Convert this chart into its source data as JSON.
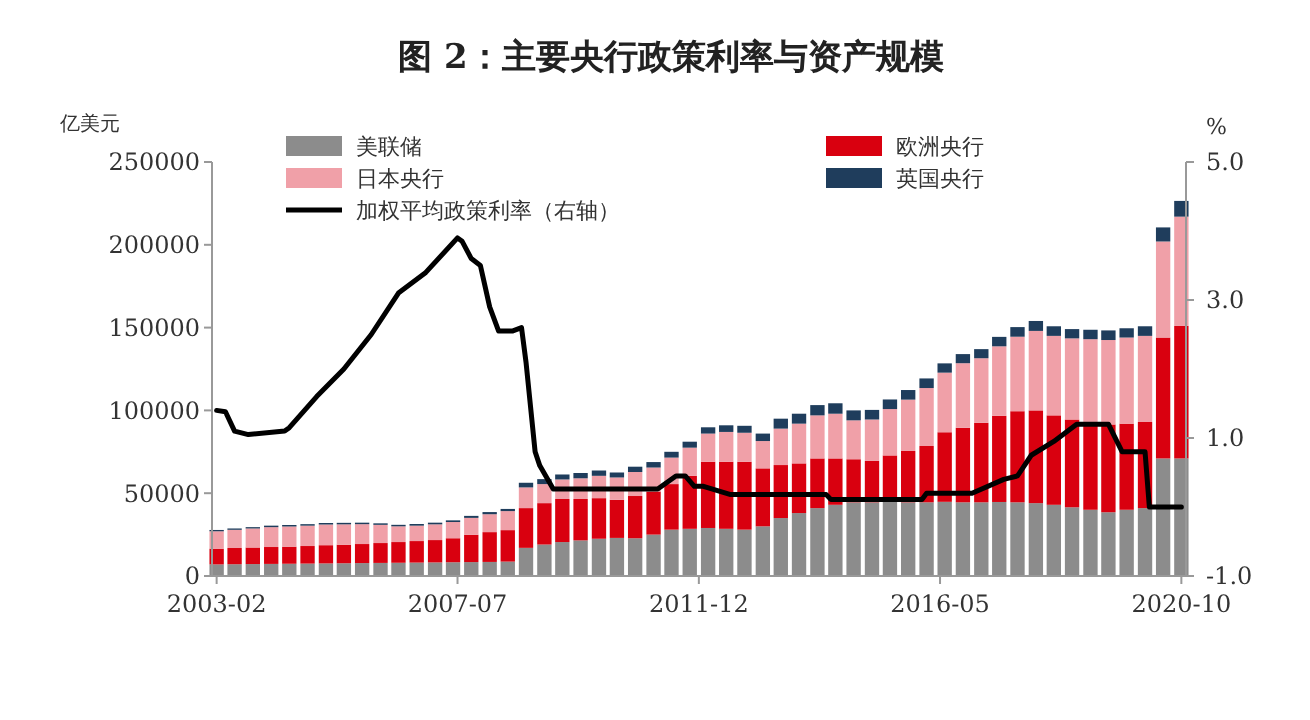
{
  "chart_data": {
    "type": "bar",
    "stacked": true,
    "title": "图 2：主要央行政策利率与资产规模",
    "ylabel": "亿美元",
    "y2label": "%",
    "legend": "top",
    "x": [
      "2003-02",
      "2003-06",
      "2003-10",
      "2004-02",
      "2004-06",
      "2004-10",
      "2005-02",
      "2005-06",
      "2005-10",
      "2006-02",
      "2006-06",
      "2006-10",
      "2007-02",
      "2007-06",
      "2007-10",
      "2008-02",
      "2008-06",
      "2008-10",
      "2009-02",
      "2009-06",
      "2009-10",
      "2010-02",
      "2010-06",
      "2010-10",
      "2011-02",
      "2011-06",
      "2011-10",
      "2012-02",
      "2012-06",
      "2012-10",
      "2013-02",
      "2013-06",
      "2013-10",
      "2014-02",
      "2014-06",
      "2014-10",
      "2015-02",
      "2015-06",
      "2015-10",
      "2016-02",
      "2016-06",
      "2016-10",
      "2017-02",
      "2017-06",
      "2017-10",
      "2018-02",
      "2018-06",
      "2018-10",
      "2019-02",
      "2019-06",
      "2019-10",
      "2020-02",
      "2020-06",
      "2020-10"
    ],
    "xlim": [
      "2003-01",
      "2020-11"
    ],
    "xticks": [
      "2003-02",
      "2007-07",
      "2011-12",
      "2016-05",
      "2020-10"
    ],
    "ylim": [
      0,
      250000
    ],
    "yticks": [
      0,
      50000,
      100000,
      150000,
      200000,
      250000
    ],
    "y2lim": [
      -1,
      5
    ],
    "y2ticks": [
      {
        "value": -1,
        "label": "-1.0"
      },
      {
        "value": 1,
        "label": "1.0"
      },
      {
        "value": 3,
        "label": "3.0"
      },
      {
        "value": 5,
        "label": "5.0"
      }
    ],
    "series": [
      {
        "name": "美联储",
        "color": "#8c8c8c",
        "values": [
          7000,
          7100,
          7200,
          7300,
          7400,
          7500,
          7600,
          7700,
          7800,
          7900,
          8000,
          8100,
          8200,
          8300,
          8400,
          8500,
          8700,
          17000,
          19000,
          20500,
          21500,
          22500,
          23000,
          22800,
          25000,
          28000,
          28500,
          29000,
          28500,
          28000,
          30000,
          35000,
          38000,
          41000,
          43000,
          44500,
          44500,
          44800,
          44500,
          44500,
          44800,
          44500,
          44500,
          44700,
          44500,
          44000,
          43000,
          41500,
          40000,
          38500,
          40000,
          41000,
          71000,
          71000
        ]
      },
      {
        "name": "欧洲央行",
        "color": "#d9000f",
        "values": [
          9500,
          9800,
          10000,
          10200,
          10300,
          10600,
          11000,
          11200,
          11500,
          12000,
          12500,
          13000,
          13500,
          14500,
          16500,
          18000,
          19000,
          24000,
          25000,
          26000,
          25000,
          24500,
          23000,
          25500,
          26000,
          27500,
          32000,
          40000,
          40500,
          41000,
          35000,
          32000,
          30000,
          30000,
          28000,
          26000,
          25000,
          28000,
          31000,
          34000,
          42000,
          45000,
          48000,
          52000,
          55000,
          56000,
          54000,
          53000,
          53000,
          53000,
          52000,
          52000,
          73000,
          80000
        ]
      },
      {
        "name": "日本央行",
        "color": "#f0a0a8",
        "values": [
          10500,
          11000,
          11500,
          12000,
          12200,
          12300,
          12500,
          12300,
          12000,
          11000,
          9500,
          9300,
          9500,
          9800,
          10200,
          10800,
          11500,
          12500,
          11500,
          11800,
          12500,
          13500,
          13500,
          14500,
          14500,
          16000,
          17000,
          17000,
          18000,
          17500,
          16500,
          22000,
          24000,
          26000,
          27000,
          23500,
          25000,
          28000,
          31000,
          35000,
          36000,
          39000,
          39000,
          42000,
          45000,
          48000,
          48000,
          49000,
          50000,
          51000,
          52000,
          52000,
          58000,
          66000
        ]
      },
      {
        "name": "英国央行",
        "color": "#1f3d5c",
        "values": [
          800,
          800,
          800,
          900,
          900,
          900,
          900,
          900,
          900,
          900,
          900,
          1000,
          1000,
          1000,
          1200,
          1300,
          1300,
          2800,
          3000,
          3000,
          3200,
          3200,
          3000,
          3200,
          3300,
          3500,
          3600,
          3800,
          4000,
          4200,
          4500,
          6000,
          6000,
          6200,
          6300,
          6000,
          5800,
          5800,
          5800,
          5800,
          5600,
          5500,
          5500,
          5700,
          5800,
          6000,
          5800,
          5600,
          5700,
          5800,
          5600,
          5800,
          8500,
          9500
        ]
      },
      {
        "name": "加权平均政策利率（右轴）",
        "type": "line",
        "axis": "y2",
        "color": "#000000",
        "x": [
          "2003-02",
          "2003-04",
          "2003-06",
          "2003-09",
          "2004-05",
          "2004-06",
          "2004-12",
          "2005-06",
          "2005-12",
          "2006-06",
          "2006-12",
          "2007-07",
          "2007-08",
          "2007-10",
          "2007-12",
          "2008-02",
          "2008-04",
          "2008-07",
          "2008-09",
          "2008-10",
          "2008-12",
          "2009-01",
          "2009-04",
          "2011-03",
          "2011-07",
          "2011-09",
          "2011-11",
          "2012-01",
          "2012-07",
          "2014-04",
          "2014-05",
          "2016-01",
          "2016-02",
          "2016-12",
          "2017-07",
          "2017-10",
          "2018-01",
          "2018-06",
          "2018-11",
          "2019-06",
          "2019-09",
          "2020-02",
          "2020-03",
          "2020-10"
        ],
        "values": [
          1.4,
          1.38,
          1.1,
          1.05,
          1.1,
          1.15,
          1.6,
          2.0,
          2.5,
          3.1,
          3.4,
          3.9,
          3.85,
          3.6,
          3.5,
          2.9,
          2.55,
          2.55,
          2.6,
          2.1,
          0.8,
          0.6,
          0.26,
          0.26,
          0.45,
          0.45,
          0.3,
          0.3,
          0.18,
          0.18,
          0.11,
          0.11,
          0.2,
          0.2,
          0.4,
          0.45,
          0.75,
          0.95,
          1.2,
          1.2,
          0.8,
          0.8,
          0.0,
          0.0
        ]
      }
    ]
  }
}
